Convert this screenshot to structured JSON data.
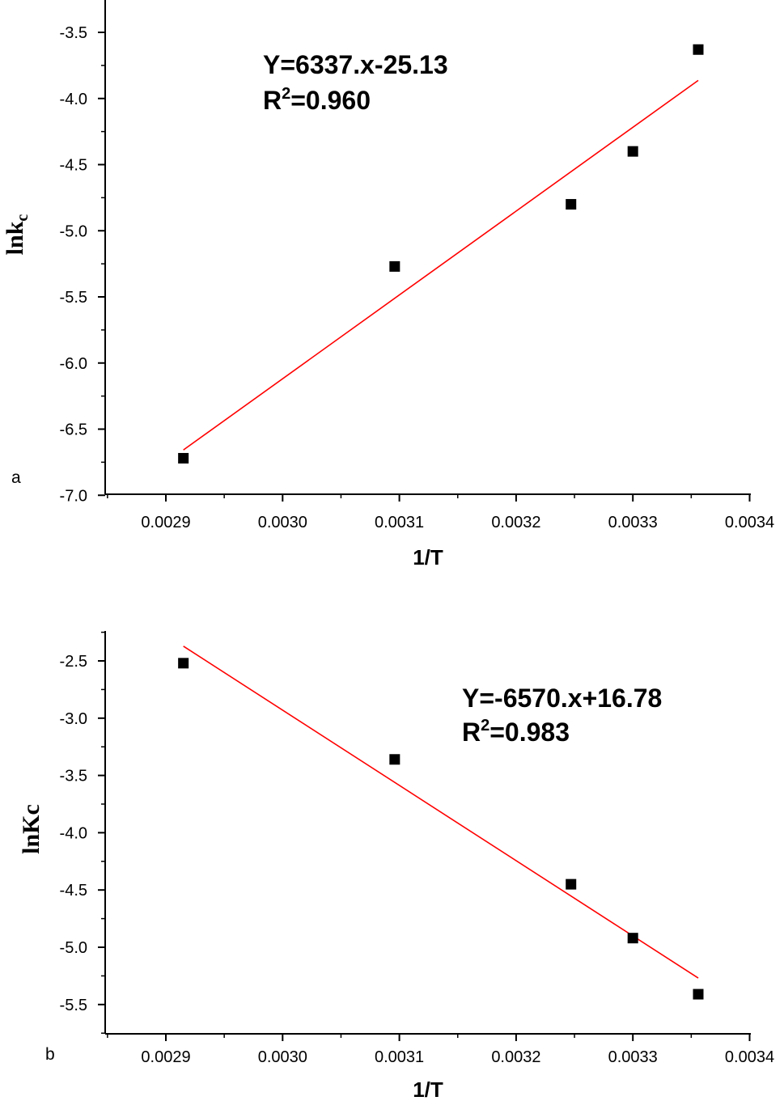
{
  "chart_data": [
    {
      "type": "scatter",
      "panel_label": "a",
      "xlabel": "1/T",
      "ylabel_main": "lnk",
      "ylabel_sub": "c",
      "x": [
        0.002915,
        0.003096,
        0.003247,
        0.0033,
        0.003356
      ],
      "y": [
        -6.72,
        -5.27,
        -4.8,
        -4.4,
        -3.63
      ],
      "fit": {
        "slope": 6337,
        "intercept": -25.13,
        "x_range": [
          0.002915,
          0.003356
        ],
        "color": "#ff0000"
      },
      "equation_line1": "Y=6337.x-25.13",
      "equation_r_prefix": "R",
      "equation_r_sup": "2",
      "equation_r_value": "=0.960",
      "xlim": [
        0.00285,
        0.0034
      ],
      "ylim": [
        -7.0,
        -3.3
      ],
      "x_ticks": [
        "0.0029",
        "0.0030",
        "0.0031",
        "0.0032",
        "0.0033",
        "0.0034"
      ],
      "x_tick_values": [
        0.0029,
        0.003,
        0.0031,
        0.0032,
        0.0033,
        0.0034
      ],
      "y_ticks": [
        "-3.5",
        "-4.0",
        "-4.5",
        "-5.0",
        "-5.5",
        "-6.0",
        "-6.5",
        "-7.0"
      ],
      "y_tick_values": [
        -3.5,
        -4.0,
        -4.5,
        -5.0,
        -5.5,
        -6.0,
        -6.5,
        -7.0
      ],
      "marker_color": "#000000",
      "grid": false
    },
    {
      "type": "scatter",
      "panel_label": "b",
      "xlabel": "1/T",
      "ylabel_main": "lnKc",
      "ylabel_sub": "",
      "x": [
        0.002915,
        0.003096,
        0.003247,
        0.0033,
        0.003356
      ],
      "y": [
        -2.52,
        -3.36,
        -4.45,
        -4.92,
        -5.41
      ],
      "fit": {
        "slope": -6570,
        "intercept": 16.78,
        "x_range": [
          0.002915,
          0.003356
        ],
        "color": "#ff0000"
      },
      "equation_line1": "Y=-6570.x+16.78",
      "equation_r_prefix": "R",
      "equation_r_sup": "2",
      "equation_r_value": "=0.983",
      "xlim": [
        0.00285,
        0.0034
      ],
      "ylim": [
        -5.75,
        -2.25
      ],
      "x_ticks": [
        "0.0029",
        "0.0030",
        "0.0031",
        "0.0032",
        "0.0033",
        "0.0034"
      ],
      "x_tick_values": [
        0.0029,
        0.003,
        0.0031,
        0.0032,
        0.0033,
        0.0034
      ],
      "y_ticks": [
        "-2.5",
        "-3.0",
        "-3.5",
        "-4.0",
        "-4.5",
        "-5.0",
        "-5.5"
      ],
      "y_tick_values": [
        -2.5,
        -3.0,
        -3.5,
        -4.0,
        -4.5,
        -5.0,
        -5.5
      ],
      "marker_color": "#000000",
      "grid": false
    }
  ]
}
